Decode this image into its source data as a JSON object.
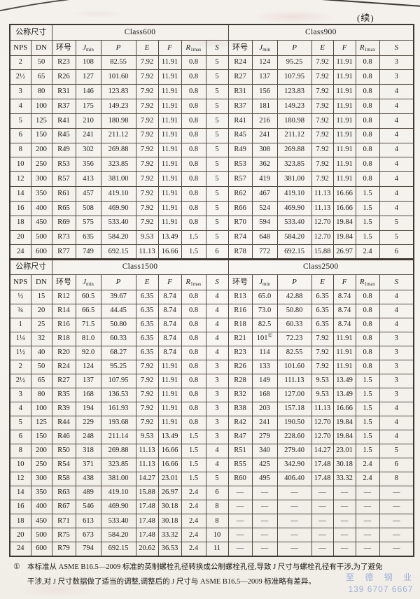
{
  "page": {
    "continued_label": "(续)",
    "footnote": {
      "marker": "①",
      "line1": "本标准从 ASME B16.5—2009 标准的英制螺栓孔径转换成公制螺栓孔径,导致 J 尺寸与螺栓孔径有干涉,为了避免",
      "line2": "干涉,对 J 尺寸数据做了适当的调整,调整后的 J 尺寸与 ASME B16.5—2009 标准略有差异。"
    },
    "watermark": {
      "line1": "至 德 钢 业",
      "line2": "139 6707 6667",
      "color": "#8fa7d6"
    }
  },
  "headers": {
    "size": "公称尺寸",
    "nps": "NPS",
    "dn": "DN",
    "ring": "环号",
    "j": "J",
    "j_sub": "min",
    "p": "P",
    "e": "E",
    "f": "F",
    "r": "R",
    "r_sub": "1max",
    "s": "S"
  },
  "tables": [
    {
      "class_left": "Class600",
      "class_right": "Class900",
      "rows": [
        [
          "2",
          "50",
          "R23",
          "108",
          "82.55",
          "7.92",
          "11.91",
          "0.8",
          "5",
          "R24",
          "124",
          "95.25",
          "7.92",
          "11.91",
          "0.8",
          "3"
        ],
        [
          "2½",
          "65",
          "R26",
          "127",
          "101.60",
          "7.92",
          "11.91",
          "0.8",
          "5",
          "R27",
          "137",
          "107.95",
          "7.92",
          "11.91",
          "0.8",
          "3"
        ],
        [
          "3",
          "80",
          "R31",
          "146",
          "123.83",
          "7.92",
          "11.91",
          "0.8",
          "5",
          "R31",
          "156",
          "123.83",
          "7.92",
          "11.91",
          "0.8",
          "4"
        ],
        [
          "4",
          "100",
          "R37",
          "175",
          "149.23",
          "7.92",
          "11.91",
          "0.8",
          "5",
          "R37",
          "181",
          "149.23",
          "7.92",
          "11.91",
          "0.8",
          "4"
        ],
        [
          "5",
          "125",
          "R41",
          "210",
          "180.98",
          "7.92",
          "11.91",
          "0.8",
          "5",
          "R41",
          "216",
          "180.98",
          "7.92",
          "11.91",
          "0.8",
          "4"
        ],
        [
          "6",
          "150",
          "R45",
          "241",
          "211.12",
          "7.92",
          "11.91",
          "0.8",
          "5",
          "R45",
          "241",
          "211.12",
          "7.92",
          "11.91",
          "0.8",
          "4"
        ],
        [
          "8",
          "200",
          "R49",
          "302",
          "269.88",
          "7.92",
          "11.91",
          "0.8",
          "5",
          "R49",
          "308",
          "269.88",
          "7.92",
          "11.91",
          "0.8",
          "4"
        ],
        [
          "10",
          "250",
          "R53",
          "356",
          "323.85",
          "7.92",
          "11.91",
          "0.8",
          "5",
          "R53",
          "362",
          "323.85",
          "7.92",
          "11.91",
          "0.8",
          "4"
        ],
        [
          "12",
          "300",
          "R57",
          "413",
          "381.00",
          "7.92",
          "11.91",
          "0.8",
          "5",
          "R57",
          "419",
          "381.00",
          "7.92",
          "11.91",
          "0.8",
          "4"
        ],
        [
          "14",
          "350",
          "R61",
          "457",
          "419.10",
          "7.92",
          "11.91",
          "0.8",
          "5",
          "R62",
          "467",
          "419.10",
          "11.13",
          "16.66",
          "1.5",
          "4"
        ],
        [
          "16",
          "400",
          "R65",
          "508",
          "469.90",
          "7.92",
          "11.91",
          "0.8",
          "5",
          "R66",
          "524",
          "469.90",
          "11.13",
          "16.66",
          "1.5",
          "4"
        ],
        [
          "18",
          "450",
          "R69",
          "575",
          "533.40",
          "7.92",
          "11.91",
          "0.8",
          "5",
          "R70",
          "594",
          "533.40",
          "12.70",
          "19.84",
          "1.5",
          "5"
        ],
        [
          "20",
          "500",
          "R73",
          "635",
          "584.20",
          "9.53",
          "13.49",
          "1.5",
          "5",
          "R74",
          "648",
          "584.20",
          "12.70",
          "19.84",
          "1.5",
          "5"
        ],
        [
          "24",
          "600",
          "R77",
          "749",
          "692.15",
          "11.13",
          "16.66",
          "1.5",
          "6",
          "R78",
          "772",
          "692.15",
          "15.88",
          "26.97",
          "2.4",
          "6"
        ]
      ]
    },
    {
      "class_left": "Class1500",
      "class_right": "Class2500",
      "rows": [
        [
          "½",
          "15",
          "R12",
          "60.5",
          "39.67",
          "6.35",
          "8.74",
          "0.8",
          "4",
          "R13",
          "65.0",
          "42.88",
          "6.35",
          "8.74",
          "0.8",
          "4"
        ],
        [
          "¾",
          "20",
          "R14",
          "66.5",
          "44.45",
          "6.35",
          "8.74",
          "0.8",
          "4",
          "R16",
          "73.0",
          "50.80",
          "6.35",
          "8.74",
          "0.8",
          "4"
        ],
        [
          "1",
          "25",
          "R16",
          "71.5",
          "50.80",
          "6.35",
          "8.74",
          "0.8",
          "4",
          "R18",
          "82.5",
          "60.33",
          "6.35",
          "8.74",
          "0.8",
          "4"
        ],
        [
          "1¼",
          "32",
          "R18",
          "81.0",
          "60.33",
          "6.35",
          "8.74",
          "0.8",
          "4",
          "R21",
          "101①",
          "72.23",
          "7.92",
          "11.91",
          "0.8",
          "3"
        ],
        [
          "1½",
          "40",
          "R20",
          "92.0",
          "68.27",
          "6.35",
          "8.74",
          "0.8",
          "4",
          "R23",
          "114",
          "82.55",
          "7.92",
          "11.91",
          "0.8",
          "3"
        ],
        [
          "2",
          "50",
          "R24",
          "124",
          "95.25",
          "7.92",
          "11.91",
          "0.8",
          "3",
          "R26",
          "133",
          "101.60",
          "7.92",
          "11.91",
          "0.8",
          "3"
        ],
        [
          "2½",
          "65",
          "R27",
          "137",
          "107.95",
          "7.92",
          "11.91",
          "0.8",
          "3",
          "R28",
          "149",
          "111.13",
          "9.53",
          "13.49",
          "1.5",
          "3"
        ],
        [
          "3",
          "80",
          "R35",
          "168",
          "136.53",
          "7.92",
          "11.91",
          "0.8",
          "3",
          "R32",
          "168",
          "127.00",
          "9.53",
          "13.49",
          "1.5",
          "3"
        ],
        [
          "4",
          "100",
          "R39",
          "194",
          "161.93",
          "7.92",
          "11.91",
          "0.8",
          "3",
          "R38",
          "203",
          "157.18",
          "11.13",
          "16.66",
          "1.5",
          "4"
        ],
        [
          "5",
          "125",
          "R44",
          "229",
          "193.68",
          "7.92",
          "11.91",
          "0.8",
          "3",
          "R42",
          "241",
          "190.50",
          "12.70",
          "19.84",
          "1.5",
          "4"
        ],
        [
          "6",
          "150",
          "R46",
          "248",
          "211.14",
          "9.53",
          "13.49",
          "1.5",
          "3",
          "R47",
          "279",
          "228.60",
          "12.70",
          "19.84",
          "1.5",
          "4"
        ],
        [
          "8",
          "200",
          "R50",
          "318",
          "269.88",
          "11.13",
          "16.66",
          "1.5",
          "4",
          "R51",
          "340",
          "279.40",
          "14.27",
          "23.01",
          "1.5",
          "5"
        ],
        [
          "10",
          "250",
          "R54",
          "371",
          "323.85",
          "11.13",
          "16.66",
          "1.5",
          "4",
          "R55",
          "425",
          "342.90",
          "17.48",
          "30.18",
          "2.4",
          "6"
        ],
        [
          "12",
          "300",
          "R58",
          "438",
          "381.00",
          "14.27",
          "23.01",
          "1.5",
          "5",
          "R60",
          "495",
          "406.40",
          "17.48",
          "33.32",
          "2.4",
          "8"
        ],
        [
          "14",
          "350",
          "R63",
          "489",
          "419.10",
          "15.88",
          "26.97",
          "2.4",
          "6",
          "—",
          "—",
          "—",
          "—",
          "—",
          "—",
          "—"
        ],
        [
          "16",
          "400",
          "R67",
          "546",
          "469.90",
          "17.48",
          "30.18",
          "2.4",
          "8",
          "—",
          "—",
          "—",
          "—",
          "—",
          "—",
          "—"
        ],
        [
          "18",
          "450",
          "R71",
          "613",
          "533.40",
          "17.48",
          "30.18",
          "2.4",
          "8",
          "—",
          "—",
          "—",
          "—",
          "—",
          "—",
          "—"
        ],
        [
          "20",
          "500",
          "R75",
          "673",
          "584.20",
          "17.48",
          "33.32",
          "2.4",
          "10",
          "—",
          "—",
          "—",
          "—",
          "—",
          "—",
          "—"
        ],
        [
          "24",
          "600",
          "R79",
          "794",
          "692.15",
          "20.62",
          "36.53",
          "2.4",
          "11",
          "—",
          "—",
          "—",
          "—",
          "—",
          "—",
          "—"
        ]
      ]
    }
  ]
}
